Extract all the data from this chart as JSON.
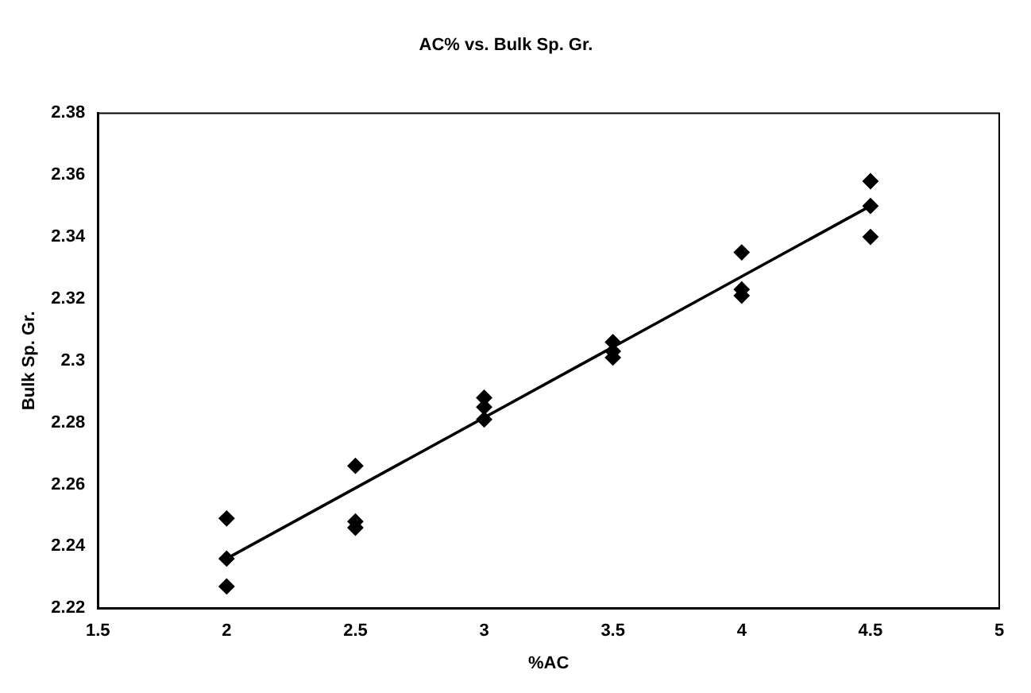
{
  "chart_data": {
    "type": "scatter",
    "title": "AC% vs. Bulk Sp. Gr.",
    "xlabel": "%AC",
    "ylabel": "Bulk Sp. Gr.",
    "xlim": [
      1.5,
      5
    ],
    "xticks": [
      1.5,
      2,
      2.5,
      3,
      3.5,
      4,
      4.5,
      5
    ],
    "ylim": [
      2.22,
      2.38
    ],
    "yticks": [
      2.22,
      2.24,
      2.26,
      2.28,
      2.3,
      2.32,
      2.34,
      2.36,
      2.38
    ],
    "grid": false,
    "legend": false,
    "marker": "diamond",
    "series": [
      {
        "type": "scatter",
        "color": "#000000",
        "x": [
          2,
          2,
          2,
          2.5,
          2.5,
          2.5,
          3,
          3,
          3,
          3.5,
          3.5,
          3.5,
          4,
          4,
          4,
          4.5,
          4.5,
          4.5
        ],
        "values": [
          2.249,
          2.236,
          2.227,
          2.266,
          2.248,
          2.246,
          2.288,
          2.285,
          2.281,
          2.306,
          2.303,
          2.301,
          2.335,
          2.323,
          2.321,
          2.358,
          2.35,
          2.34
        ]
      },
      {
        "type": "line",
        "color": "#000000",
        "marker": "none",
        "x": [
          2,
          4.5
        ],
        "values": [
          2.236,
          2.35
        ]
      }
    ]
  }
}
